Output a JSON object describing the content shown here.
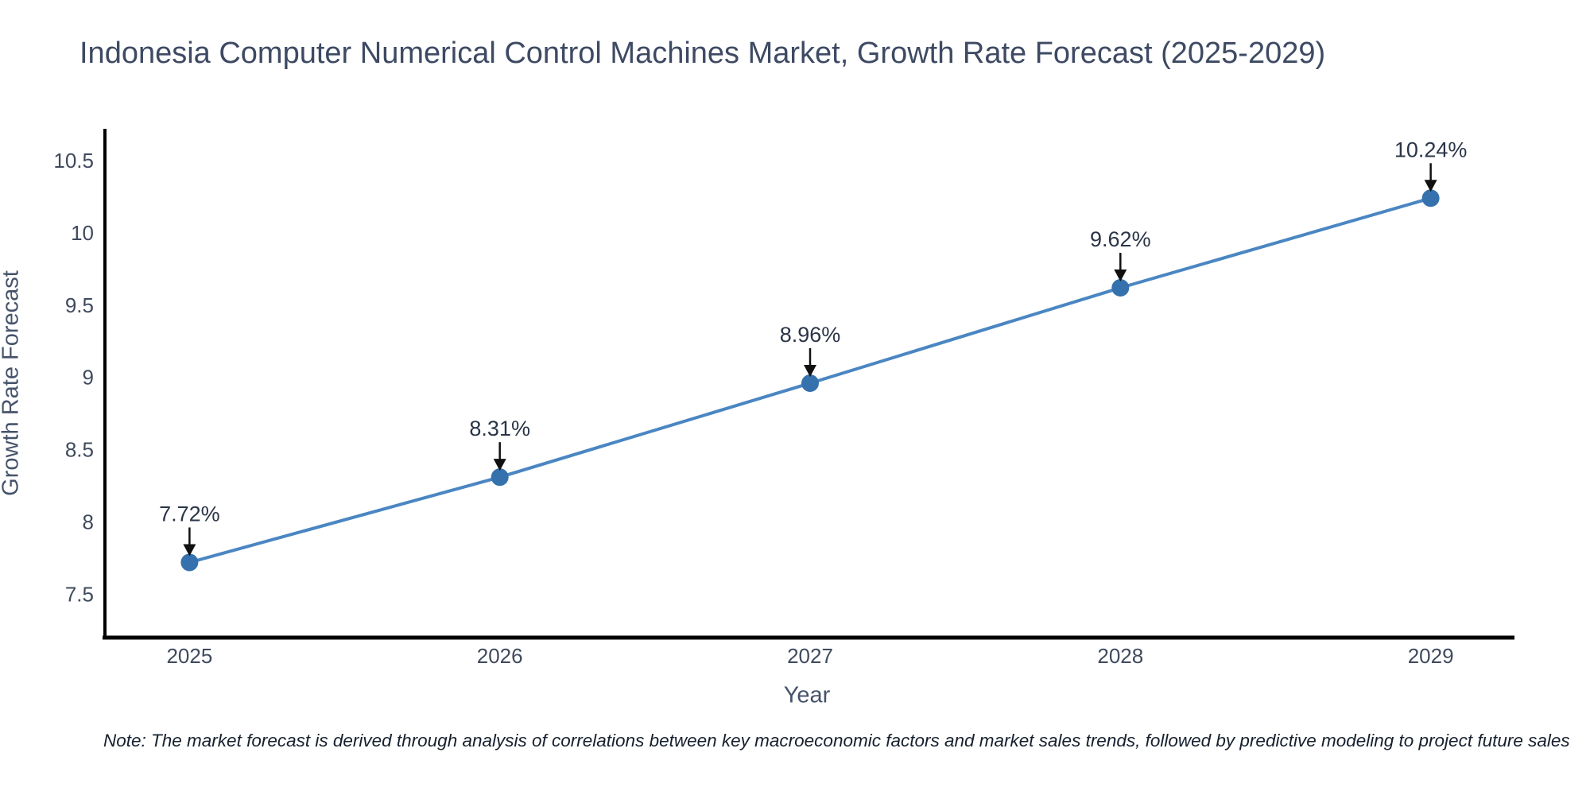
{
  "title": "Indonesia Computer Numerical Control Machines Market, Growth Rate Forecast (2025-2029)",
  "note": "Note: The market forecast is derived through analysis of correlations between key macroeconomic factors and market sales trends, followed by predictive modeling to project future sales",
  "chart_data": {
    "type": "line",
    "title": "Indonesia Computer Numerical Control Machines Market, Growth Rate Forecast (2025-2029)",
    "xlabel": "Year",
    "ylabel": "Growth Rate Forecast",
    "x": [
      2025,
      2026,
      2027,
      2028,
      2029
    ],
    "series": [
      {
        "name": "Growth Rate Forecast",
        "values": [
          7.72,
          8.31,
          8.96,
          9.62,
          10.24
        ]
      }
    ],
    "point_labels": [
      "7.72%",
      "8.31%",
      "8.96%",
      "9.62%",
      "10.24%"
    ],
    "xticks": {
      "values": [
        2025,
        2026,
        2027,
        2028,
        2029
      ],
      "labels": [
        "2025",
        "2026",
        "2027",
        "2028",
        "2029"
      ]
    },
    "yticks": {
      "values": [
        7.5,
        8,
        8.5,
        9,
        9.5,
        10,
        10.5
      ],
      "labels": [
        "7.5",
        "8",
        "8.5",
        "9",
        "9.5",
        "10",
        "10.5"
      ]
    },
    "xlim": [
      2024.73,
      2029.27
    ],
    "ylim": [
      7.2,
      10.72
    ],
    "grid": false,
    "legend": false,
    "line_color": "#4a86c2",
    "marker_color": "#3571ac",
    "axis_color": "#000000",
    "annotation_color": "#2a3547",
    "arrow_color": "#111111",
    "tick_color": "#3f4a5e"
  }
}
